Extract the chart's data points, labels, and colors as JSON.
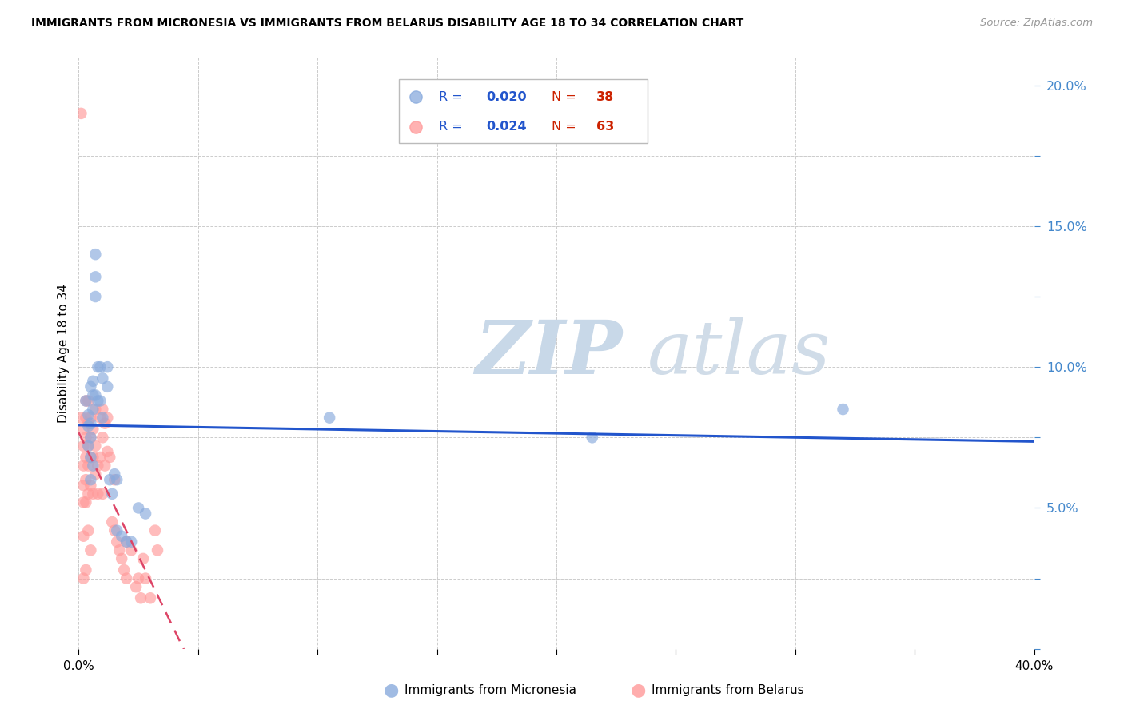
{
  "title": "IMMIGRANTS FROM MICRONESIA VS IMMIGRANTS FROM BELARUS DISABILITY AGE 18 TO 34 CORRELATION CHART",
  "source": "Source: ZipAtlas.com",
  "ylabel": "Disability Age 18 to 34",
  "xlim": [
    0.0,
    0.4
  ],
  "ylim": [
    0.0,
    0.21
  ],
  "micronesia_color": "#88aadd",
  "belarus_color": "#ff9999",
  "micronesia_line_color": "#2255cc",
  "belarus_line_color": "#dd4466",
  "R_color": "#2255cc",
  "N_color": "#cc2200",
  "watermark_zip": "ZIP",
  "watermark_atlas": "atlas",
  "micronesia_x": [
    0.003,
    0.004,
    0.004,
    0.004,
    0.005,
    0.005,
    0.005,
    0.005,
    0.005,
    0.006,
    0.006,
    0.006,
    0.006,
    0.007,
    0.007,
    0.007,
    0.007,
    0.008,
    0.008,
    0.009,
    0.009,
    0.01,
    0.01,
    0.012,
    0.012,
    0.013,
    0.014,
    0.015,
    0.016,
    0.016,
    0.018,
    0.02,
    0.022,
    0.025,
    0.028,
    0.105,
    0.215,
    0.32
  ],
  "micronesia_y": [
    0.088,
    0.083,
    0.079,
    0.072,
    0.093,
    0.08,
    0.075,
    0.068,
    0.06,
    0.095,
    0.09,
    0.085,
    0.065,
    0.14,
    0.125,
    0.132,
    0.09,
    0.1,
    0.088,
    0.1,
    0.088,
    0.096,
    0.082,
    0.1,
    0.093,
    0.06,
    0.055,
    0.062,
    0.06,
    0.042,
    0.04,
    0.038,
    0.038,
    0.05,
    0.048,
    0.082,
    0.075,
    0.085
  ],
  "belarus_x": [
    0.001,
    0.001,
    0.002,
    0.002,
    0.002,
    0.002,
    0.002,
    0.002,
    0.002,
    0.003,
    0.003,
    0.003,
    0.003,
    0.003,
    0.003,
    0.003,
    0.004,
    0.004,
    0.004,
    0.004,
    0.004,
    0.004,
    0.005,
    0.005,
    0.005,
    0.005,
    0.005,
    0.006,
    0.006,
    0.006,
    0.007,
    0.007,
    0.007,
    0.008,
    0.008,
    0.009,
    0.009,
    0.01,
    0.01,
    0.01,
    0.011,
    0.011,
    0.012,
    0.012,
    0.013,
    0.014,
    0.015,
    0.015,
    0.016,
    0.017,
    0.018,
    0.019,
    0.02,
    0.02,
    0.022,
    0.024,
    0.025,
    0.026,
    0.027,
    0.028,
    0.03,
    0.032,
    0.033
  ],
  "belarus_y": [
    0.19,
    0.082,
    0.078,
    0.072,
    0.065,
    0.058,
    0.052,
    0.04,
    0.025,
    0.088,
    0.082,
    0.075,
    0.068,
    0.06,
    0.052,
    0.028,
    0.088,
    0.08,
    0.072,
    0.065,
    0.055,
    0.042,
    0.082,
    0.075,
    0.068,
    0.058,
    0.035,
    0.078,
    0.068,
    0.055,
    0.085,
    0.072,
    0.062,
    0.065,
    0.055,
    0.082,
    0.068,
    0.085,
    0.075,
    0.055,
    0.08,
    0.065,
    0.082,
    0.07,
    0.068,
    0.045,
    0.06,
    0.042,
    0.038,
    0.035,
    0.032,
    0.028,
    0.038,
    0.025,
    0.035,
    0.022,
    0.025,
    0.018,
    0.032,
    0.025,
    0.018,
    0.042,
    0.035
  ]
}
